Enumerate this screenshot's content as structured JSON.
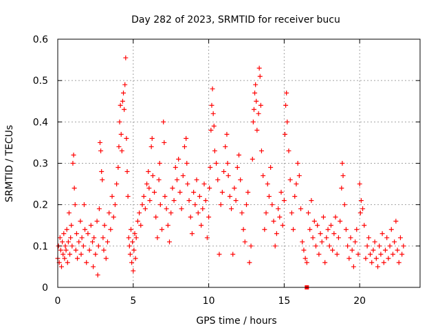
{
  "chart_data": {
    "type": "scatter",
    "title": "Day 282 of 2023, SRMTID for receiver bucu",
    "xlabel": "GPS time / hours",
    "ylabel": "SRMTID / TECUs",
    "xlim": [
      0,
      24
    ],
    "ylim": [
      0,
      0.6
    ],
    "x_ticks": [
      0,
      5,
      10,
      15,
      20
    ],
    "x_tick_labels": [
      "0",
      "5",
      "10",
      "15",
      "20"
    ],
    "y_ticks": [
      0,
      0.1,
      0.2,
      0.3,
      0.4,
      0.5,
      0.6
    ],
    "y_tick_labels": [
      "0",
      "0.1",
      "0.2",
      "0.3",
      "0.4",
      "0.5",
      "0.6"
    ],
    "grid": true,
    "marker": "plus",
    "color": "#ff0000",
    "series": [
      {
        "name": "SRMTID",
        "points": [
          [
            0.0,
            0.07
          ],
          [
            0.05,
            0.1
          ],
          [
            0.1,
            0.06
          ],
          [
            0.15,
            0.12
          ],
          [
            0.2,
            0.09
          ],
          [
            0.25,
            0.05
          ],
          [
            0.3,
            0.11
          ],
          [
            0.35,
            0.08
          ],
          [
            0.4,
            0.13
          ],
          [
            0.45,
            0.07
          ],
          [
            0.5,
            0.1
          ],
          [
            0.55,
            0.09
          ],
          [
            0.6,
            0.14
          ],
          [
            0.65,
            0.06
          ],
          [
            0.7,
            0.11
          ],
          [
            0.75,
            0.18
          ],
          [
            0.8,
            0.08
          ],
          [
            0.85,
            0.12
          ],
          [
            0.9,
            0.15
          ],
          [
            0.95,
            0.1
          ],
          [
            1.0,
            0.3
          ],
          [
            1.05,
            0.32
          ],
          [
            1.1,
            0.24
          ],
          [
            1.15,
            0.2
          ],
          [
            1.2,
            0.09
          ],
          [
            1.25,
            0.13
          ],
          [
            1.3,
            0.07
          ],
          [
            1.4,
            0.11
          ],
          [
            1.5,
            0.16
          ],
          [
            1.55,
            0.08
          ],
          [
            1.6,
            0.12
          ],
          [
            1.7,
            0.1
          ],
          [
            1.75,
            0.2
          ],
          [
            1.8,
            0.14
          ],
          [
            1.9,
            0.06
          ],
          [
            2.0,
            0.13
          ],
          [
            2.1,
            0.09
          ],
          [
            2.2,
            0.15
          ],
          [
            2.3,
            0.11
          ],
          [
            2.35,
            0.05
          ],
          [
            2.4,
            0.12
          ],
          [
            2.5,
            0.08
          ],
          [
            2.6,
            0.16
          ],
          [
            2.65,
            0.03
          ],
          [
            2.7,
            0.1
          ],
          [
            2.75,
            0.19
          ],
          [
            2.8,
            0.35
          ],
          [
            2.85,
            0.33
          ],
          [
            2.9,
            0.28
          ],
          [
            2.95,
            0.26
          ],
          [
            3.0,
            0.12
          ],
          [
            3.05,
            0.09
          ],
          [
            3.1,
            0.15
          ],
          [
            3.2,
            0.07
          ],
          [
            3.3,
            0.11
          ],
          [
            3.4,
            0.18
          ],
          [
            3.5,
            0.14
          ],
          [
            3.6,
            0.22
          ],
          [
            3.7,
            0.17
          ],
          [
            3.8,
            0.2
          ],
          [
            3.9,
            0.25
          ],
          [
            4.0,
            0.29
          ],
          [
            4.05,
            0.34
          ],
          [
            4.1,
            0.4
          ],
          [
            4.15,
            0.44
          ],
          [
            4.2,
            0.37
          ],
          [
            4.25,
            0.33
          ],
          [
            4.3,
            0.45
          ],
          [
            4.35,
            0.47
          ],
          [
            4.4,
            0.43
          ],
          [
            4.45,
            0.49
          ],
          [
            4.5,
            0.555
          ],
          [
            4.55,
            0.36
          ],
          [
            4.6,
            0.28
          ],
          [
            4.65,
            0.22
          ],
          [
            4.7,
            0.12
          ],
          [
            4.75,
            0.1
          ],
          [
            4.8,
            0.08
          ],
          [
            4.85,
            0.14
          ],
          [
            4.9,
            0.06
          ],
          [
            4.95,
            0.11
          ],
          [
            5.0,
            0.04
          ],
          [
            5.05,
            0.09
          ],
          [
            5.1,
            0.13
          ],
          [
            5.15,
            0.07
          ],
          [
            5.2,
            0.12
          ],
          [
            5.3,
            0.16
          ],
          [
            5.4,
            0.18
          ],
          [
            5.5,
            0.15
          ],
          [
            5.6,
            0.2
          ],
          [
            5.7,
            0.22
          ],
          [
            5.8,
            0.19
          ],
          [
            5.9,
            0.25
          ],
          [
            6.0,
            0.28
          ],
          [
            6.05,
            0.24
          ],
          [
            6.1,
            0.21
          ],
          [
            6.2,
            0.34
          ],
          [
            6.25,
            0.36
          ],
          [
            6.3,
            0.27
          ],
          [
            6.4,
            0.23
          ],
          [
            6.5,
            0.17
          ],
          [
            6.6,
            0.12
          ],
          [
            6.7,
            0.26
          ],
          [
            6.75,
            0.3
          ],
          [
            6.8,
            0.2
          ],
          [
            6.9,
            0.14
          ],
          [
            7.0,
            0.4
          ],
          [
            7.05,
            0.35
          ],
          [
            7.1,
            0.22
          ],
          [
            7.2,
            0.19
          ],
          [
            7.3,
            0.15
          ],
          [
            7.4,
            0.11
          ],
          [
            7.5,
            0.18
          ],
          [
            7.6,
            0.24
          ],
          [
            7.7,
            0.21
          ],
          [
            7.8,
            0.29
          ],
          [
            7.9,
            0.26
          ],
          [
            8.0,
            0.31
          ],
          [
            8.1,
            0.23
          ],
          [
            8.2,
            0.19
          ],
          [
            8.3,
            0.27
          ],
          [
            8.4,
            0.34
          ],
          [
            8.5,
            0.36
          ],
          [
            8.55,
            0.3
          ],
          [
            8.6,
            0.25
          ],
          [
            8.7,
            0.21
          ],
          [
            8.8,
            0.17
          ],
          [
            8.9,
            0.13
          ],
          [
            9.0,
            0.23
          ],
          [
            9.1,
            0.2
          ],
          [
            9.2,
            0.26
          ],
          [
            9.3,
            0.18
          ],
          [
            9.4,
            0.22
          ],
          [
            9.5,
            0.15
          ],
          [
            9.6,
            0.19
          ],
          [
            9.7,
            0.25
          ],
          [
            9.8,
            0.21
          ],
          [
            9.9,
            0.12
          ],
          [
            10.0,
            0.17
          ],
          [
            10.05,
            0.24
          ],
          [
            10.1,
            0.29
          ],
          [
            10.15,
            0.38
          ],
          [
            10.2,
            0.44
          ],
          [
            10.25,
            0.48
          ],
          [
            10.3,
            0.42
          ],
          [
            10.35,
            0.39
          ],
          [
            10.4,
            0.33
          ],
          [
            10.5,
            0.3
          ],
          [
            10.6,
            0.26
          ],
          [
            10.7,
            0.08
          ],
          [
            10.8,
            0.2
          ],
          [
            10.9,
            0.23
          ],
          [
            11.0,
            0.28
          ],
          [
            11.1,
            0.34
          ],
          [
            11.2,
            0.37
          ],
          [
            11.25,
            0.3
          ],
          [
            11.3,
            0.27
          ],
          [
            11.4,
            0.22
          ],
          [
            11.5,
            0.19
          ],
          [
            11.6,
            0.08
          ],
          [
            11.7,
            0.24
          ],
          [
            11.8,
            0.21
          ],
          [
            11.9,
            0.29
          ],
          [
            12.0,
            0.32
          ],
          [
            12.1,
            0.26
          ],
          [
            12.2,
            0.18
          ],
          [
            12.3,
            0.14
          ],
          [
            12.4,
            0.11
          ],
          [
            12.5,
            0.2
          ],
          [
            12.6,
            0.23
          ],
          [
            12.7,
            0.06
          ],
          [
            12.8,
            0.1
          ],
          [
            12.9,
            0.31
          ],
          [
            12.95,
            0.4
          ],
          [
            13.0,
            0.43
          ],
          [
            13.05,
            0.47
          ],
          [
            13.1,
            0.49
          ],
          [
            13.15,
            0.45
          ],
          [
            13.2,
            0.38
          ],
          [
            13.3,
            0.42
          ],
          [
            13.35,
            0.53
          ],
          [
            13.4,
            0.51
          ],
          [
            13.45,
            0.44
          ],
          [
            13.5,
            0.33
          ],
          [
            13.6,
            0.27
          ],
          [
            13.7,
            0.14
          ],
          [
            13.8,
            0.18
          ],
          [
            13.9,
            0.25
          ],
          [
            14.0,
            0.22
          ],
          [
            14.1,
            0.29
          ],
          [
            14.2,
            0.2
          ],
          [
            14.3,
            0.16
          ],
          [
            14.4,
            0.1
          ],
          [
            14.5,
            0.13
          ],
          [
            14.6,
            0.19
          ],
          [
            14.7,
            0.17
          ],
          [
            14.8,
            0.23
          ],
          [
            14.9,
            0.15
          ],
          [
            15.0,
            0.21
          ],
          [
            15.05,
            0.37
          ],
          [
            15.1,
            0.44
          ],
          [
            15.15,
            0.47
          ],
          [
            15.2,
            0.4
          ],
          [
            15.3,
            0.33
          ],
          [
            15.4,
            0.26
          ],
          [
            15.5,
            0.18
          ],
          [
            15.6,
            0.14
          ],
          [
            15.7,
            0.22
          ],
          [
            15.8,
            0.25
          ],
          [
            15.9,
            0.3
          ],
          [
            16.0,
            0.27
          ],
          [
            16.1,
            0.19
          ],
          [
            16.2,
            0.11
          ],
          [
            16.3,
            0.09
          ],
          [
            16.4,
            0.07
          ],
          [
            16.5,
            0.06
          ],
          [
            16.6,
            0.18
          ],
          [
            16.7,
            0.14
          ],
          [
            16.8,
            0.21
          ],
          [
            16.9,
            0.12
          ],
          [
            17.0,
            0.16
          ],
          [
            17.1,
            0.1
          ],
          [
            17.2,
            0.15
          ],
          [
            17.3,
            0.08
          ],
          [
            17.4,
            0.13
          ],
          [
            17.5,
            0.11
          ],
          [
            17.6,
            0.17
          ],
          [
            17.7,
            0.06
          ],
          [
            17.8,
            0.12
          ],
          [
            17.9,
            0.14
          ],
          [
            18.0,
            0.1
          ],
          [
            18.1,
            0.15
          ],
          [
            18.2,
            0.09
          ],
          [
            18.3,
            0.13
          ],
          [
            18.4,
            0.17
          ],
          [
            18.5,
            0.08
          ],
          [
            18.6,
            0.12
          ],
          [
            18.7,
            0.16
          ],
          [
            18.8,
            0.24
          ],
          [
            18.85,
            0.3
          ],
          [
            18.9,
            0.27
          ],
          [
            19.0,
            0.2
          ],
          [
            19.1,
            0.14
          ],
          [
            19.2,
            0.1
          ],
          [
            19.3,
            0.07
          ],
          [
            19.4,
            0.12
          ],
          [
            19.5,
            0.09
          ],
          [
            19.6,
            0.05
          ],
          [
            19.7,
            0.11
          ],
          [
            19.8,
            0.14
          ],
          [
            19.9,
            0.08
          ],
          [
            20.0,
            0.25
          ],
          [
            20.05,
            0.18
          ],
          [
            20.1,
            0.21
          ],
          [
            20.2,
            0.19
          ],
          [
            20.3,
            0.15
          ],
          [
            20.4,
            0.07
          ],
          [
            20.5,
            0.1
          ],
          [
            20.6,
            0.12
          ],
          [
            20.7,
            0.08
          ],
          [
            20.8,
            0.06
          ],
          [
            20.9,
            0.09
          ],
          [
            21.0,
            0.11
          ],
          [
            21.1,
            0.07
          ],
          [
            21.2,
            0.05
          ],
          [
            21.3,
            0.1
          ],
          [
            21.4,
            0.08
          ],
          [
            21.5,
            0.13
          ],
          [
            21.6,
            0.06
          ],
          [
            21.7,
            0.09
          ],
          [
            21.8,
            0.12
          ],
          [
            21.9,
            0.07
          ],
          [
            22.0,
            0.1
          ],
          [
            22.1,
            0.14
          ],
          [
            22.2,
            0.08
          ],
          [
            22.3,
            0.11
          ],
          [
            22.4,
            0.16
          ],
          [
            22.5,
            0.09
          ],
          [
            22.6,
            0.06
          ],
          [
            22.7,
            0.12
          ],
          [
            22.8,
            0.08
          ],
          [
            22.9,
            0.1
          ]
        ]
      },
      {
        "name": "marker",
        "marker": "square",
        "points": [
          [
            16.5,
            0.0
          ]
        ]
      }
    ]
  }
}
